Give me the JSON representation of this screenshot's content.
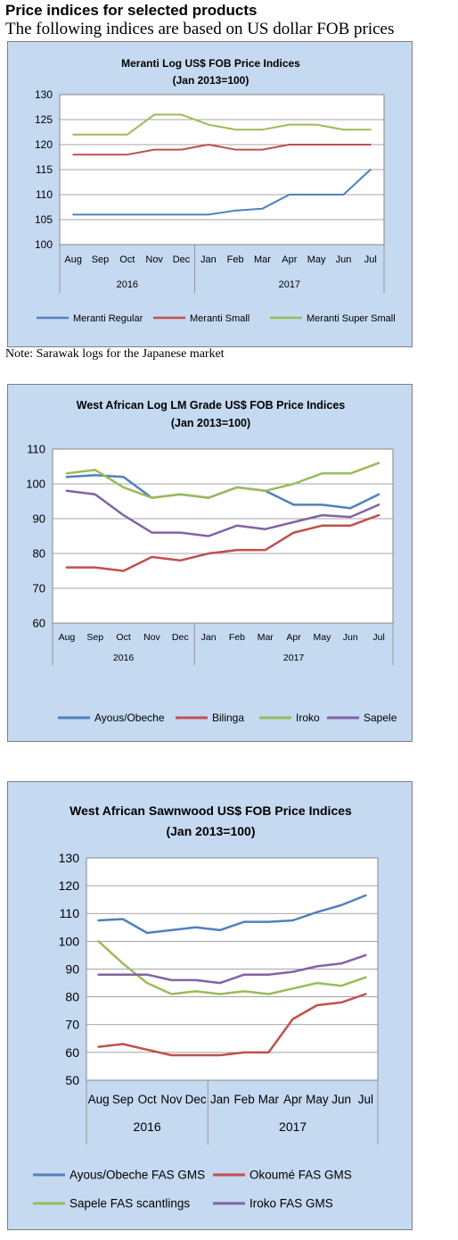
{
  "page": {
    "heading": "Price indices for selected products",
    "subheading": "The following indices are based on US dollar FOB prices",
    "note": "Note: Sarawak logs for the Japanese market"
  },
  "chart_data": [
    {
      "type": "line",
      "title": "Meranti Log US$ FOB Price Indices",
      "subtitle": "(Jan 2013=100)",
      "categories": [
        "Aug",
        "Sep",
        "Oct",
        "Nov",
        "Dec",
        "Jan",
        "Feb",
        "Mar",
        "Apr",
        "May",
        "Jun",
        "Jul"
      ],
      "year_groups": [
        {
          "label": "2016",
          "span": 5
        },
        {
          "label": "2017",
          "span": 7
        }
      ],
      "ylim": [
        100,
        130
      ],
      "yticks": [
        100,
        105,
        110,
        115,
        120,
        125,
        130
      ],
      "grid": true,
      "legend_position": "bottom",
      "series": [
        {
          "name": "Meranti Regular",
          "color": "#4f81bd",
          "values": [
            106,
            106,
            106,
            106,
            106,
            106,
            106.8,
            107.2,
            110,
            110,
            110,
            115
          ]
        },
        {
          "name": "Meranti Small",
          "color": "#c0504d",
          "values": [
            118,
            118,
            118,
            119,
            119,
            120,
            119,
            119,
            120,
            120,
            120,
            120
          ]
        },
        {
          "name": "Meranti Super Small",
          "color": "#9bbb59",
          "values": [
            122,
            122,
            122,
            126,
            126,
            124,
            123,
            123,
            124,
            124,
            123,
            123
          ]
        }
      ]
    },
    {
      "type": "line",
      "title": "West African Log LM Grade US$ FOB Price Indices",
      "subtitle": "(Jan 2013=100)",
      "categories": [
        "Aug",
        "Sep",
        "Oct",
        "Nov",
        "Dec",
        "Jan",
        "Feb",
        "Mar",
        "Apr",
        "May",
        "Jun",
        "Jul"
      ],
      "year_groups": [
        {
          "label": "2016",
          "span": 5
        },
        {
          "label": "2017",
          "span": 7
        }
      ],
      "ylim": [
        60,
        110
      ],
      "yticks": [
        60,
        70,
        80,
        90,
        100,
        110
      ],
      "grid": true,
      "legend_position": "bottom",
      "series": [
        {
          "name": "Ayous/Obeche",
          "color": "#4f81bd",
          "values": [
            102,
            102.5,
            102,
            96,
            97,
            96,
            99,
            98,
            94,
            94,
            93,
            97
          ]
        },
        {
          "name": "Bilinga",
          "color": "#c0504d",
          "values": [
            76,
            76,
            75,
            79,
            78,
            80,
            81,
            81,
            86,
            88,
            88,
            91
          ]
        },
        {
          "name": "Iroko",
          "color": "#9bbb59",
          "values": [
            103,
            104,
            99,
            96,
            97,
            96,
            99,
            98,
            100,
            103,
            103,
            106
          ]
        },
        {
          "name": "Sapele",
          "color": "#8064a2",
          "values": [
            98,
            97,
            91,
            86,
            86,
            85,
            88,
            87,
            89,
            91,
            90.5,
            94
          ]
        }
      ]
    },
    {
      "type": "line",
      "title": "West African Sawnwood US$ FOB Price Indices",
      "subtitle": "(Jan 2013=100)",
      "categories": [
        "Aug",
        "Sep",
        "Oct",
        "Nov",
        "Dec",
        "Jan",
        "Feb",
        "Mar",
        "Apr",
        "May",
        "Jun",
        "Jul"
      ],
      "year_groups": [
        {
          "label": "2016",
          "span": 5
        },
        {
          "label": "2017",
          "span": 7
        }
      ],
      "ylim": [
        50,
        130
      ],
      "yticks": [
        50,
        60,
        70,
        80,
        90,
        100,
        110,
        120,
        130
      ],
      "grid": true,
      "legend_position": "bottom",
      "series": [
        {
          "name": "Ayous/Obeche  FAS GMS",
          "color": "#4f81bd",
          "values": [
            107.5,
            108,
            103,
            104,
            105,
            104,
            107,
            107,
            107.5,
            110.5,
            113,
            116.5
          ]
        },
        {
          "name": "Okoumé  FAS GMS",
          "color": "#c0504d",
          "values": [
            62,
            63,
            61,
            59,
            59,
            59,
            60,
            60,
            72,
            77,
            78,
            81
          ]
        },
        {
          "name": "Sapele FAS scantlings",
          "color": "#9bbb59",
          "values": [
            100,
            92,
            85,
            81,
            82,
            81,
            82,
            81,
            83,
            85,
            84,
            87
          ]
        },
        {
          "name": "Iroko FAS GMS",
          "color": "#8064a2",
          "values": [
            88,
            88,
            88,
            86,
            86,
            85,
            88,
            88,
            89,
            91,
            92,
            95
          ]
        }
      ]
    }
  ]
}
